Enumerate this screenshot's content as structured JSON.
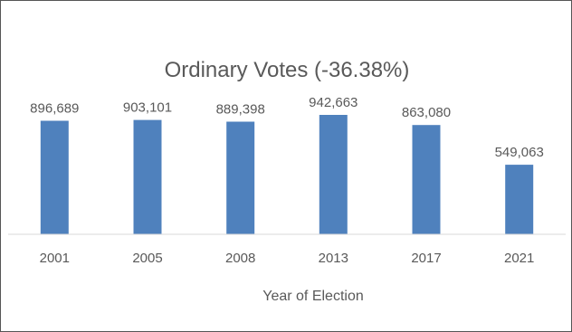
{
  "chart_data": {
    "type": "bar",
    "title": "Ordinary Votes (-36.38%)",
    "xlabel": "Year of Election",
    "ylabel": "",
    "categories": [
      "2001",
      "2005",
      "2008",
      "2013",
      "2017",
      "2021"
    ],
    "values": [
      896689,
      903101,
      889398,
      942663,
      863080,
      549063
    ],
    "value_labels": [
      "896,689",
      "903,101",
      "889,398",
      "942,663",
      "863,080",
      "549,063"
    ],
    "ylim": [
      0,
      1000000
    ],
    "grid": false,
    "legend": "none",
    "colors": {
      "bar": "#4f81bd",
      "text": "#595959",
      "axis": "#d9d9d9"
    }
  }
}
